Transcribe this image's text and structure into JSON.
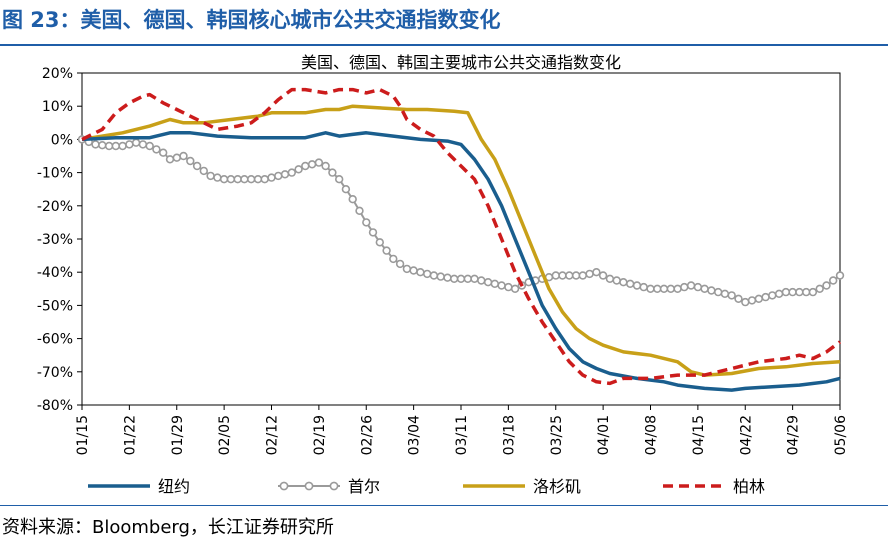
{
  "figure": {
    "title": "图 23：美国、德国、韩国核心城市公共交通指数变化",
    "source": "资料来源：Bloomberg，长江证券研究所"
  },
  "chart_data": {
    "type": "line",
    "title": "美国、德国、韩国主要城市公共交通指数变化",
    "xlabel": "",
    "ylabel": "",
    "ylim": [
      -80,
      20
    ],
    "yticks": [
      "20%",
      "10%",
      "0%",
      "-10%",
      "-20%",
      "-30%",
      "-40%",
      "-50%",
      "-60%",
      "-70%",
      "-80%"
    ],
    "x_range_days": [
      0,
      112
    ],
    "xticks": [
      {
        "day": 0,
        "label": "01/15"
      },
      {
        "day": 7,
        "label": "01/22"
      },
      {
        "day": 14,
        "label": "01/29"
      },
      {
        "day": 21,
        "label": "02/05"
      },
      {
        "day": 28,
        "label": "02/12"
      },
      {
        "day": 35,
        "label": "02/19"
      },
      {
        "day": 42,
        "label": "02/26"
      },
      {
        "day": 49,
        "label": "03/04"
      },
      {
        "day": 56,
        "label": "03/11"
      },
      {
        "day": 63,
        "label": "03/18"
      },
      {
        "day": 70,
        "label": "03/25"
      },
      {
        "day": 77,
        "label": "04/01"
      },
      {
        "day": 84,
        "label": "04/08"
      },
      {
        "day": 91,
        "label": "04/15"
      },
      {
        "day": 98,
        "label": "04/22"
      },
      {
        "day": 105,
        "label": "04/29"
      },
      {
        "day": 112,
        "label": "05/06"
      }
    ],
    "grid": false,
    "legend_position": "bottom",
    "series": [
      {
        "name": "纽约",
        "color": "#1a5e8e",
        "style": "solid",
        "points": [
          [
            0,
            0
          ],
          [
            5,
            0.5
          ],
          [
            10,
            0.5
          ],
          [
            13,
            2
          ],
          [
            16,
            2
          ],
          [
            20,
            1
          ],
          [
            25,
            0.5
          ],
          [
            30,
            0.5
          ],
          [
            33,
            0.5
          ],
          [
            36,
            2
          ],
          [
            38,
            1
          ],
          [
            40,
            1.5
          ],
          [
            42,
            2
          ],
          [
            46,
            1
          ],
          [
            50,
            0
          ],
          [
            54,
            -0.5
          ],
          [
            56,
            -1.5
          ],
          [
            58,
            -6
          ],
          [
            60,
            -12
          ],
          [
            62,
            -20
          ],
          [
            64,
            -30
          ],
          [
            66,
            -40
          ],
          [
            68,
            -50
          ],
          [
            70,
            -57
          ],
          [
            72,
            -63
          ],
          [
            74,
            -67
          ],
          [
            76,
            -69
          ],
          [
            78,
            -70.5
          ],
          [
            82,
            -72
          ],
          [
            86,
            -73
          ],
          [
            88,
            -74
          ],
          [
            92,
            -75
          ],
          [
            96,
            -75.5
          ],
          [
            98,
            -75
          ],
          [
            102,
            -74.5
          ],
          [
            106,
            -74
          ],
          [
            110,
            -73
          ],
          [
            112,
            -72
          ]
        ]
      },
      {
        "name": "首尔",
        "color": "#9a9a9a",
        "style": "marker",
        "points": [
          [
            0,
            0
          ],
          [
            2,
            -1.5
          ],
          [
            4,
            -2
          ],
          [
            6,
            -2
          ],
          [
            8,
            -1
          ],
          [
            10,
            -2
          ],
          [
            12,
            -4
          ],
          [
            13,
            -6
          ],
          [
            15,
            -5
          ],
          [
            17,
            -8
          ],
          [
            19,
            -11
          ],
          [
            21,
            -12
          ],
          [
            23,
            -12
          ],
          [
            25,
            -12
          ],
          [
            27,
            -12
          ],
          [
            29,
            -11
          ],
          [
            31,
            -10
          ],
          [
            33,
            -8
          ],
          [
            35,
            -7
          ],
          [
            36,
            -8
          ],
          [
            38,
            -12
          ],
          [
            40,
            -18
          ],
          [
            42,
            -25
          ],
          [
            44,
            -31
          ],
          [
            46,
            -36
          ],
          [
            48,
            -39
          ],
          [
            50,
            -40
          ],
          [
            52,
            -41
          ],
          [
            55,
            -42
          ],
          [
            58,
            -42
          ],
          [
            60,
            -43
          ],
          [
            62,
            -44
          ],
          [
            64,
            -45
          ],
          [
            66,
            -43
          ],
          [
            68,
            -42
          ],
          [
            70,
            -41
          ],
          [
            72,
            -41
          ],
          [
            74,
            -41
          ],
          [
            76,
            -40
          ],
          [
            78,
            -42
          ],
          [
            80,
            -43
          ],
          [
            82,
            -44
          ],
          [
            84,
            -45
          ],
          [
            86,
            -45
          ],
          [
            88,
            -45
          ],
          [
            90,
            -44
          ],
          [
            92,
            -45
          ],
          [
            94,
            -46
          ],
          [
            96,
            -47
          ],
          [
            98,
            -49
          ],
          [
            100,
            -48
          ],
          [
            102,
            -47
          ],
          [
            104,
            -46
          ],
          [
            106,
            -46
          ],
          [
            108,
            -46
          ],
          [
            110,
            -44
          ],
          [
            112,
            -41
          ]
        ]
      },
      {
        "name": "洛杉矶",
        "color": "#c8a018",
        "style": "solid",
        "points": [
          [
            0,
            0
          ],
          [
            3,
            1
          ],
          [
            6,
            2
          ],
          [
            8,
            3
          ],
          [
            10,
            4
          ],
          [
            13,
            6
          ],
          [
            15,
            5
          ],
          [
            18,
            5
          ],
          [
            22,
            6
          ],
          [
            26,
            7
          ],
          [
            28,
            8
          ],
          [
            30,
            8
          ],
          [
            33,
            8
          ],
          [
            36,
            9
          ],
          [
            38,
            9
          ],
          [
            40,
            10
          ],
          [
            44,
            9.5
          ],
          [
            48,
            9
          ],
          [
            51,
            9
          ],
          [
            55,
            8.5
          ],
          [
            57,
            8
          ],
          [
            59,
            0
          ],
          [
            61,
            -6
          ],
          [
            63,
            -15
          ],
          [
            65,
            -25
          ],
          [
            67,
            -35
          ],
          [
            69,
            -45
          ],
          [
            71,
            -52
          ],
          [
            73,
            -57
          ],
          [
            75,
            -60
          ],
          [
            77,
            -62
          ],
          [
            80,
            -64
          ],
          [
            84,
            -65
          ],
          [
            88,
            -67
          ],
          [
            90,
            -70
          ],
          [
            92,
            -71
          ],
          [
            96,
            -70.5
          ],
          [
            100,
            -69
          ],
          [
            104,
            -68.5
          ],
          [
            108,
            -67.5
          ],
          [
            112,
            -67
          ]
        ]
      },
      {
        "name": "柏林",
        "color": "#cc1c1c",
        "style": "dashed",
        "points": [
          [
            0,
            0
          ],
          [
            3,
            3
          ],
          [
            5,
            8
          ],
          [
            7,
            11
          ],
          [
            9,
            13
          ],
          [
            10,
            13.5
          ],
          [
            12,
            11
          ],
          [
            14,
            9
          ],
          [
            16,
            7
          ],
          [
            18,
            5
          ],
          [
            20,
            3
          ],
          [
            23,
            4
          ],
          [
            25,
            5
          ],
          [
            27,
            8
          ],
          [
            29,
            12
          ],
          [
            31,
            15
          ],
          [
            33,
            15
          ],
          [
            36,
            14
          ],
          [
            38,
            15
          ],
          [
            40,
            15
          ],
          [
            42,
            14
          ],
          [
            44,
            15
          ],
          [
            46,
            13
          ],
          [
            47,
            10
          ],
          [
            48,
            6
          ],
          [
            50,
            3
          ],
          [
            52,
            1
          ],
          [
            54,
            -4
          ],
          [
            56,
            -8
          ],
          [
            58,
            -12
          ],
          [
            60,
            -20
          ],
          [
            62,
            -30
          ],
          [
            64,
            -40
          ],
          [
            66,
            -48
          ],
          [
            68,
            -55
          ],
          [
            70,
            -61
          ],
          [
            72,
            -67
          ],
          [
            74,
            -71
          ],
          [
            76,
            -73
          ],
          [
            78,
            -73.5
          ],
          [
            80,
            -72
          ],
          [
            84,
            -72
          ],
          [
            88,
            -71
          ],
          [
            92,
            -71
          ],
          [
            96,
            -69
          ],
          [
            100,
            -67
          ],
          [
            104,
            -66
          ],
          [
            106,
            -65
          ],
          [
            108,
            -66
          ],
          [
            110,
            -64
          ],
          [
            112,
            -61
          ]
        ]
      }
    ]
  }
}
